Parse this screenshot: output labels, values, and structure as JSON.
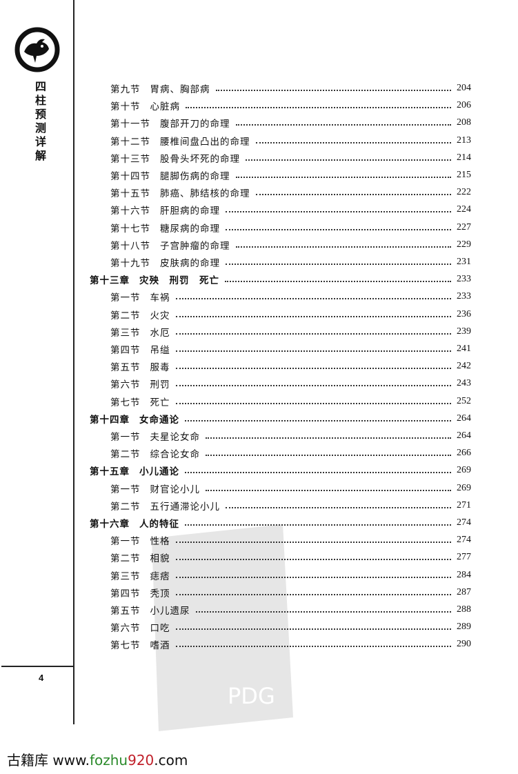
{
  "sidebar": {
    "book_title": [
      "四",
      "柱",
      "预",
      "测",
      "详",
      "解"
    ],
    "page_number": "4",
    "logo": "phoenix-seal-logo"
  },
  "toc": [
    {
      "level": "section",
      "num": "第九节",
      "title": "胃病、胸部病",
      "page": "204"
    },
    {
      "level": "section",
      "num": "第十节",
      "title": "心脏病",
      "page": "206"
    },
    {
      "level": "section",
      "num": "第十一节",
      "title": "腹部开刀的命理",
      "page": "208"
    },
    {
      "level": "section",
      "num": "第十二节",
      "title": "腰椎间盘凸出的命理",
      "page": "213"
    },
    {
      "level": "section",
      "num": "第十三节",
      "title": "股骨头坏死的命理",
      "page": "214"
    },
    {
      "level": "section",
      "num": "第十四节",
      "title": "腿脚伤病的命理",
      "page": "215"
    },
    {
      "level": "section",
      "num": "第十五节",
      "title": "肺癌、肺结核的命理",
      "page": "222"
    },
    {
      "level": "section",
      "num": "第十六节",
      "title": "肝胆病的命理",
      "page": "224"
    },
    {
      "level": "section",
      "num": "第十七节",
      "title": "糖尿病的命理",
      "page": "227"
    },
    {
      "level": "section",
      "num": "第十八节",
      "title": "子宫肿瘤的命理",
      "page": "229"
    },
    {
      "level": "section",
      "num": "第十九节",
      "title": "皮肤病的命理",
      "page": "231"
    },
    {
      "level": "chapter",
      "num": "第十三章",
      "title": "灾殃　刑罚　死亡",
      "page": "233"
    },
    {
      "level": "section",
      "num": "第一节",
      "title": "车祸",
      "page": "233"
    },
    {
      "level": "section",
      "num": "第二节",
      "title": "火灾",
      "page": "236"
    },
    {
      "level": "section",
      "num": "第三节",
      "title": "水厄",
      "page": "239"
    },
    {
      "level": "section",
      "num": "第四节",
      "title": "吊缢",
      "page": "241"
    },
    {
      "level": "section",
      "num": "第五节",
      "title": "服毒",
      "page": "242"
    },
    {
      "level": "section",
      "num": "第六节",
      "title": "刑罚",
      "page": "243"
    },
    {
      "level": "section",
      "num": "第七节",
      "title": "死亡",
      "page": "252"
    },
    {
      "level": "chapter",
      "num": "第十四章",
      "title": "女命通论",
      "page": "264"
    },
    {
      "level": "section",
      "num": "第一节",
      "title": "夫星论女命",
      "page": "264"
    },
    {
      "level": "section",
      "num": "第二节",
      "title": "综合论女命",
      "page": "266"
    },
    {
      "level": "chapter",
      "num": "第十五章",
      "title": "小儿通论",
      "page": "269"
    },
    {
      "level": "section",
      "num": "第一节",
      "title": "财官论小儿",
      "page": "269"
    },
    {
      "level": "section",
      "num": "第二节",
      "title": "五行通滞论小儿",
      "page": "271"
    },
    {
      "level": "chapter",
      "num": "第十六章",
      "title": "人的特征",
      "page": "274"
    },
    {
      "level": "section",
      "num": "第一节",
      "title": "性格",
      "page": "274"
    },
    {
      "level": "section",
      "num": "第二节",
      "title": "相貌",
      "page": "277"
    },
    {
      "level": "section",
      "num": "第三节",
      "title": "痣痞",
      "page": "284"
    },
    {
      "level": "section",
      "num": "第四节",
      "title": "秃顶",
      "page": "287"
    },
    {
      "level": "section",
      "num": "第五节",
      "title": "小儿遗尿",
      "page": "288"
    },
    {
      "level": "section",
      "num": "第六节",
      "title": "口吃",
      "page": "289"
    },
    {
      "level": "section",
      "num": "第七节",
      "title": "嗜酒",
      "page": "290"
    }
  ],
  "watermark": {
    "text": "PDG"
  },
  "footer": {
    "site_name": "古籍库",
    "url_prefix": "www.",
    "url_green": "fozhu",
    "url_red": "920",
    "url_suffix": ".com",
    "colors": {
      "green": "#2a8a2a",
      "red": "#c0202a"
    }
  }
}
